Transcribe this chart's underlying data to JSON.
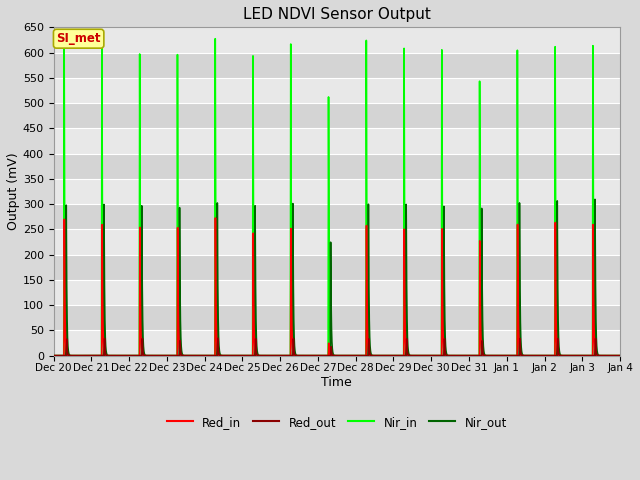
{
  "title": "LED NDVI Sensor Output",
  "xlabel": "Time",
  "ylabel": "Output (mV)",
  "ylim": [
    0,
    650
  ],
  "yticks": [
    0,
    50,
    100,
    150,
    200,
    250,
    300,
    350,
    400,
    450,
    500,
    550,
    600,
    650
  ],
  "num_days": 15,
  "xtick_labels": [
    "Dec 20",
    "Dec 21",
    "Dec 22",
    "Dec 23",
    "Dec 24",
    "Dec 25",
    "Dec 26",
    "Dec 27",
    "Dec 28",
    "Dec 29",
    "Dec 30",
    "Dec 31",
    "Jan 1",
    "Jan 2",
    "Jan 3",
    "Jan 4"
  ],
  "annotation_text": "SI_met",
  "annotation_bg": "#ffff99",
  "annotation_border": "#aaaa00",
  "annotation_text_color": "#cc0000",
  "bg_color": "#d9d9d9",
  "plot_bg_light": "#e8e8e8",
  "plot_bg_dark": "#d4d4d4",
  "grid_color": "#ffffff",
  "legend_entries": [
    {
      "label": "Red_in",
      "color": "#ff0000",
      "lw": 1.2
    },
    {
      "label": "Red_out",
      "color": "#8b0000",
      "lw": 1.2
    },
    {
      "label": "Nir_in",
      "color": "#00ff00",
      "lw": 1.2
    },
    {
      "label": "Nir_out",
      "color": "#006400",
      "lw": 1.2
    }
  ],
  "peaks": [
    {
      "day": 0.28,
      "nir_in": 625,
      "nir_out": 298,
      "red_in": 270,
      "red_out": 33
    },
    {
      "day": 1.28,
      "nir_in": 610,
      "nir_out": 300,
      "red_in": 260,
      "red_out": 34
    },
    {
      "day": 2.28,
      "nir_in": 600,
      "nir_out": 298,
      "red_in": 255,
      "red_out": 34
    },
    {
      "day": 3.28,
      "nir_in": 600,
      "nir_out": 295,
      "red_in": 255,
      "red_out": 30
    },
    {
      "day": 4.28,
      "nir_in": 633,
      "nir_out": 305,
      "red_in": 275,
      "red_out": 35
    },
    {
      "day": 5.28,
      "nir_in": 600,
      "nir_out": 300,
      "red_in": 245,
      "red_out": 34
    },
    {
      "day": 6.28,
      "nir_in": 625,
      "nir_out": 305,
      "red_in": 255,
      "red_out": 34
    },
    {
      "day": 7.28,
      "nir_in": 520,
      "nir_out": 228,
      "red_in": 25,
      "red_out": 18
    },
    {
      "day": 8.28,
      "nir_in": 635,
      "nir_out": 305,
      "red_in": 262,
      "red_out": 34
    },
    {
      "day": 9.28,
      "nir_in": 620,
      "nir_out": 305,
      "red_in": 255,
      "red_out": 34
    },
    {
      "day": 10.28,
      "nir_in": 615,
      "nir_out": 300,
      "red_in": 255,
      "red_out": 34
    },
    {
      "day": 11.28,
      "nir_in": 550,
      "nir_out": 295,
      "red_in": 230,
      "red_out": 30
    },
    {
      "day": 12.28,
      "nir_in": 610,
      "nir_out": 305,
      "red_in": 262,
      "red_out": 34
    },
    {
      "day": 13.28,
      "nir_in": 615,
      "nir_out": 308,
      "red_in": 265,
      "red_out": 34
    },
    {
      "day": 14.28,
      "nir_in": 615,
      "nir_out": 310,
      "red_in": 260,
      "red_out": 34
    }
  ]
}
